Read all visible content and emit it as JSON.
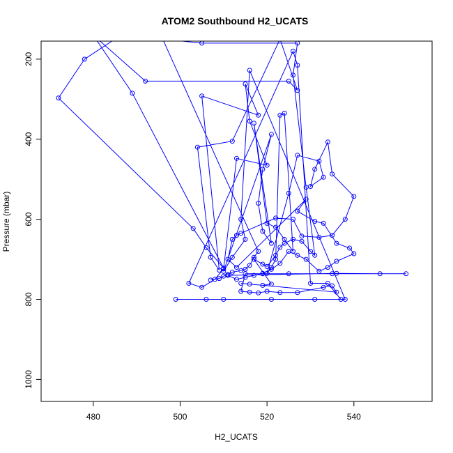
{
  "chart_data": {
    "type": "line",
    "title": "ATOM2 Southbound H2_UCATS",
    "xlabel": "H2_UCATS",
    "ylabel": "Pressure (mbar)",
    "xlim": [
      468,
      558
    ],
    "ylim": [
      1055,
      155
    ],
    "y_reversed": true,
    "x_ticks": [
      480,
      500,
      520,
      540
    ],
    "y_ticks": [
      200,
      400,
      600,
      800,
      1000
    ],
    "grid": false,
    "color": "#0000ff",
    "marker": "open-circle",
    "points": [
      [
        485,
        150
      ],
      [
        478,
        200
      ],
      [
        472,
        297
      ],
      [
        503,
        623
      ],
      [
        506,
        671
      ],
      [
        510,
        722
      ],
      [
        489,
        285
      ],
      [
        480,
        140
      ],
      [
        492,
        255
      ],
      [
        525,
        255
      ],
      [
        527,
        278
      ],
      [
        523,
        150
      ],
      [
        512,
        405
      ],
      [
        504,
        420
      ],
      [
        507,
        695
      ],
      [
        509,
        727
      ],
      [
        505,
        292
      ],
      [
        518,
        340
      ],
      [
        515,
        262
      ],
      [
        516,
        355
      ],
      [
        520,
        465
      ],
      [
        513,
        448
      ],
      [
        510,
        724
      ],
      [
        508,
        750
      ],
      [
        505,
        770
      ],
      [
        502,
        760
      ],
      [
        526,
        180
      ],
      [
        527,
        215
      ],
      [
        530,
        760
      ],
      [
        534,
        760
      ],
      [
        537,
        800
      ],
      [
        499,
        800
      ],
      [
        506,
        800
      ],
      [
        510,
        800
      ],
      [
        521,
        800
      ],
      [
        531,
        800
      ],
      [
        538,
        800
      ],
      [
        516,
        228
      ],
      [
        514,
        600
      ],
      [
        515,
        650
      ],
      [
        512,
        695
      ],
      [
        510,
        730
      ],
      [
        521,
        388
      ],
      [
        519,
        475
      ],
      [
        518,
        560
      ],
      [
        519,
        630
      ],
      [
        521,
        660
      ],
      [
        517,
        360
      ],
      [
        520,
        610
      ],
      [
        522,
        620
      ],
      [
        524,
        650
      ],
      [
        526,
        680
      ],
      [
        524,
        335
      ],
      [
        523,
        340
      ],
      [
        522,
        700
      ],
      [
        521,
        720
      ],
      [
        520,
        735
      ],
      [
        525,
        535
      ],
      [
        527,
        440
      ],
      [
        532,
        455
      ],
      [
        533,
        495
      ],
      [
        530,
        518
      ],
      [
        531,
        475
      ],
      [
        534,
        407
      ],
      [
        535,
        487
      ],
      [
        540,
        543
      ],
      [
        538,
        600
      ],
      [
        535,
        640
      ],
      [
        532,
        645
      ],
      [
        528,
        642
      ],
      [
        526,
        600
      ],
      [
        522,
        597
      ],
      [
        514,
        635
      ],
      [
        513,
        640
      ],
      [
        512,
        650
      ],
      [
        511,
        700
      ],
      [
        513,
        720
      ],
      [
        529,
        550
      ],
      [
        527,
        580
      ],
      [
        531,
        605
      ],
      [
        533,
        610
      ],
      [
        536,
        660
      ],
      [
        539,
        672
      ],
      [
        540,
        686
      ],
      [
        536,
        705
      ],
      [
        534,
        720
      ],
      [
        532,
        730
      ],
      [
        529,
        700
      ],
      [
        527,
        690
      ],
      [
        525,
        680
      ],
      [
        523,
        710
      ],
      [
        521,
        725
      ],
      [
        519,
        735
      ],
      [
        517,
        740
      ],
      [
        515,
        745
      ],
      [
        513,
        750
      ],
      [
        511,
        740
      ],
      [
        536,
        735
      ],
      [
        546,
        736
      ],
      [
        552,
        736
      ],
      [
        535,
        736
      ],
      [
        525,
        736
      ],
      [
        519,
        736
      ],
      [
        515,
        736
      ],
      [
        514,
        780
      ],
      [
        516,
        782
      ],
      [
        518,
        784
      ],
      [
        520,
        780
      ],
      [
        523,
        783
      ],
      [
        527,
        783
      ],
      [
        533,
        770
      ],
      [
        535,
        766
      ],
      [
        536,
        782
      ],
      [
        514,
        760
      ],
      [
        516,
        762
      ],
      [
        519,
        765
      ],
      [
        521,
        762
      ],
      [
        517,
        700
      ],
      [
        519,
        712
      ],
      [
        520,
        718
      ],
      [
        522,
        690
      ],
      [
        523,
        670
      ],
      [
        524,
        660
      ],
      [
        526,
        650
      ],
      [
        528,
        655
      ],
      [
        530,
        680
      ],
      [
        531,
        690
      ],
      [
        529,
        520
      ],
      [
        526,
        240
      ],
      [
        527,
        160
      ],
      [
        505,
        160
      ],
      [
        496,
        150
      ],
      [
        518,
        680
      ],
      [
        517,
        695
      ],
      [
        516,
        715
      ],
      [
        515,
        725
      ],
      [
        514,
        728
      ],
      [
        512,
        732
      ],
      [
        511,
        738
      ],
      [
        510,
        742
      ],
      [
        509,
        748
      ],
      [
        507,
        752
      ]
    ]
  }
}
